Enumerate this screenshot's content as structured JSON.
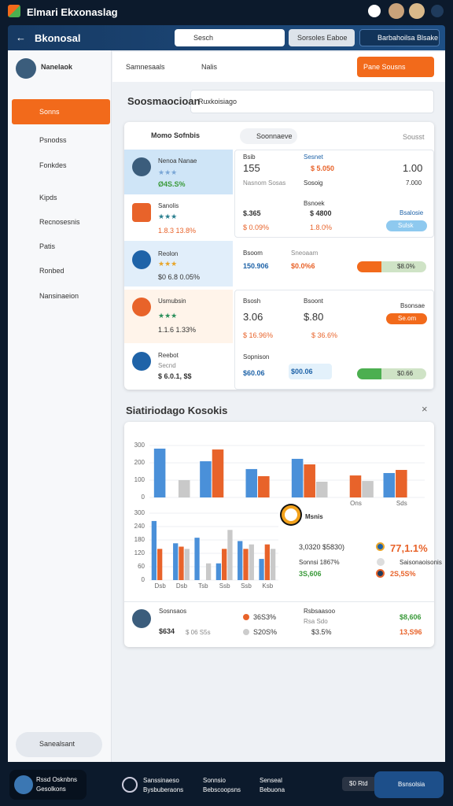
{
  "app": {
    "title": "Elmari Ekxonaslag"
  },
  "header": {
    "title": "Bkonosal",
    "search": "Sesch",
    "button1": "Sorsoles Eaboe",
    "button2": "Barbahoilsa Blsake"
  },
  "sidebar": {
    "user": "Nanelaok",
    "nav": [
      "Sonns",
      "Psnodss",
      "Fonkdes",
      "Kipds",
      "Recnosesnis",
      "Patis",
      "Ronbed",
      "Nansinaeion"
    ],
    "footer": "Sanealsant"
  },
  "toolbar": {
    "tab1": "Samnesaals",
    "tab2": "Nalis",
    "action": "Pane Sousns"
  },
  "section1": {
    "title": "Soosmaocioan",
    "select": "Ruxkoisiago"
  },
  "list": {
    "title": "Momo Sofnbis",
    "search": "Soonnaeve",
    "filter": "Sousst",
    "rows": [
      {
        "name": "Nenoa Nanae",
        "change": "Ø4S.S%",
        "c1label": "Bsib",
        "c1value": "155",
        "c1sub": "Nasnom Sosas",
        "c2label": "Sesnet",
        "c2value": "$ 5.050",
        "c2sub": "Sosoig",
        "c3value": "1.00",
        "c3sub": "7.000"
      },
      {
        "name": "Sanolis",
        "change": "1.8.3 13.8%",
        "c1value": "$.365",
        "c1sub": "$ 0.09%",
        "c2label": "Bsnoek",
        "c2value": "$ 4800",
        "c2sub": "1.8.0%",
        "c3label": "Bsalosie",
        "badge": "Sulsk"
      },
      {
        "name": "Reolon",
        "change": "$0 6.8 0.05%",
        "c1label": "Bsoom",
        "c1value": "150.906",
        "c2label": "Sneoaam",
        "c2value": "$0.0%6",
        "toggle": "$8.0%"
      },
      {
        "name": "Usmubsin",
        "change": "1.1.6 1.33%",
        "c1label": "Bsosh",
        "c1value": "3.06",
        "c1sub": "$ 16.96%",
        "c2label": "Bsoont",
        "c2value": "$.80",
        "c2sub": "$ 36.6%",
        "c3label": "Bsonsae",
        "badge": "Se.om"
      },
      {
        "name": "Reebot",
        "sub": "Secnd",
        "change": "$ 6.0.1, $$",
        "c1label": "Sopnison",
        "c1value": "$60.06",
        "c2value": "$00.06",
        "toggle": "$0.66"
      }
    ]
  },
  "section2": {
    "title": "Siatiriodago Kosokis"
  },
  "chart_data": [
    {
      "type": "bar",
      "categories": [
        null,
        null,
        null,
        null,
        "Ons",
        "Sds"
      ],
      "ylim": [
        0,
        300
      ],
      "yticks": [
        0,
        100,
        200,
        300
      ],
      "grid": true,
      "series": [
        {
          "color": "#4a90d9",
          "values": [
            282,
            209,
            164,
            223,
            null,
            141
          ]
        },
        {
          "color": "#e8632a",
          "values": [
            null,
            277,
            123,
            191,
            127,
            159
          ]
        },
        {
          "color": "#c9c9c9",
          "values": [
            100,
            null,
            null,
            91,
            95,
            null
          ]
        }
      ]
    },
    {
      "type": "bar",
      "categories": [
        "Dsb",
        "Dsb",
        "Tsb",
        "Ssb",
        "Ssb",
        "Ksb"
      ],
      "ylim": [
        0,
        300
      ],
      "yticks": [
        0,
        60,
        120,
        180,
        240,
        300
      ],
      "grid": true,
      "series": [
        {
          "color": "#4a90d9",
          "values": [
            265,
            165,
            190,
            75,
            175,
            95
          ]
        },
        {
          "color": "#e8632a",
          "values": [
            140,
            150,
            null,
            140,
            140,
            160
          ]
        },
        {
          "color": "#c9c9c9",
          "values": [
            null,
            140,
            75,
            225,
            160,
            140
          ]
        }
      ]
    }
  ],
  "stats": {
    "marker": "Msnis",
    "a1": "3,0320 $5830)",
    "a2": "77,1.1%",
    "b1": "Sonnsi 1867%",
    "b2": "Saisonaoisonis",
    "c1": "3S,606",
    "c2": "2S,5S%"
  },
  "bottom": {
    "name": "Sosnsaos",
    "v1": "$634",
    "v2": "$ 06 S5s",
    "p1": "36S3%",
    "p2": "S20S%",
    "l1": "Rsbsaasoo",
    "l2": "Rsa Sdo",
    "l3": "$3.5%",
    "r1": "$8,606",
    "r2": "13,S96"
  },
  "footer": {
    "user": "Rssd Osknbns",
    "role": "Gesolkons",
    "n1a": "Sanssinaeso",
    "n1b": "Bysbuberaons",
    "n2a": "Sonnsio",
    "n2b": "Bebscoopsns",
    "n3a": "Senseal",
    "n3b": "Bebuona",
    "pill": "$0 Rtd",
    "button": "Bsnsolsia"
  }
}
